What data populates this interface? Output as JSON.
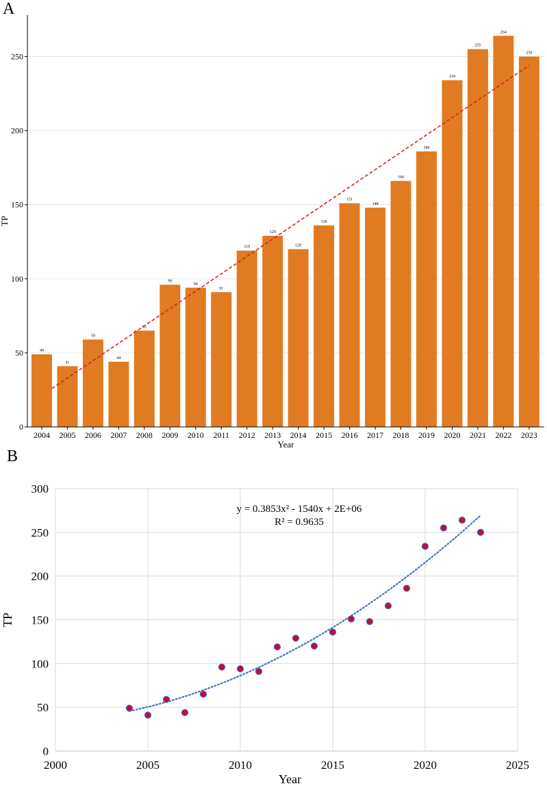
{
  "panels": {
    "a_label": "A",
    "b_label": "B"
  },
  "chart_data": [
    {
      "type": "bar",
      "title": "",
      "xlabel": "Year",
      "ylabel": "TP",
      "ylim": [
        0,
        278
      ],
      "yticks": [
        0,
        50,
        100,
        150,
        200,
        250
      ],
      "categories": [
        "2004",
        "2005",
        "2006",
        "2007",
        "2008",
        "2009",
        "2010",
        "2011",
        "2012",
        "2013",
        "2014",
        "2015",
        "2016",
        "2017",
        "2018",
        "2019",
        "2020",
        "2021",
        "2022",
        "2023"
      ],
      "values": [
        49,
        41,
        59,
        44,
        65,
        96,
        94,
        91,
        119,
        129,
        120,
        136,
        151,
        148,
        166,
        186,
        234,
        255,
        264,
        250
      ],
      "data_labels": [
        "49",
        "41",
        "59",
        "44",
        "65",
        "96",
        "94",
        "91",
        "119",
        "129",
        "120",
        "136",
        "151",
        "148",
        "166",
        "186",
        "234",
        "255",
        "264",
        "250"
      ],
      "trendline": {
        "type": "linear",
        "start": 26,
        "end": 244
      },
      "colors": {
        "bar": "#E07B22",
        "trend": "#D62020",
        "grid": "#E6E6E6"
      }
    },
    {
      "type": "scatter",
      "title": "",
      "xlabel": "Year",
      "ylabel": "TP",
      "xlim": [
        2000,
        2025
      ],
      "ylim": [
        0,
        300
      ],
      "xticks": [
        2000,
        2005,
        2010,
        2015,
        2020,
        2025
      ],
      "yticks": [
        0,
        50,
        100,
        150,
        200,
        250,
        300
      ],
      "x": [
        2004,
        2005,
        2006,
        2007,
        2008,
        2009,
        2010,
        2011,
        2012,
        2013,
        2014,
        2015,
        2016,
        2017,
        2018,
        2019,
        2020,
        2021,
        2022,
        2023
      ],
      "y": [
        49,
        41,
        59,
        44,
        65,
        96,
        94,
        91,
        119,
        129,
        120,
        136,
        151,
        148,
        166,
        186,
        234,
        255,
        264,
        250
      ],
      "trendline": {
        "type": "polynomial",
        "points_x": [
          2004,
          2010,
          2015,
          2020,
          2023
        ],
        "points_y": [
          45,
          88,
          140,
          215,
          270
        ]
      },
      "equation": "y = 0.3853x² - 1540x + 2E+06",
      "r_squared": "R² = 0.9635",
      "colors": {
        "marker_fill": "#C0102A",
        "marker_edge": "#4A5FC1",
        "trend": "#4472C4",
        "grid": "#D9D9D9"
      }
    }
  ]
}
